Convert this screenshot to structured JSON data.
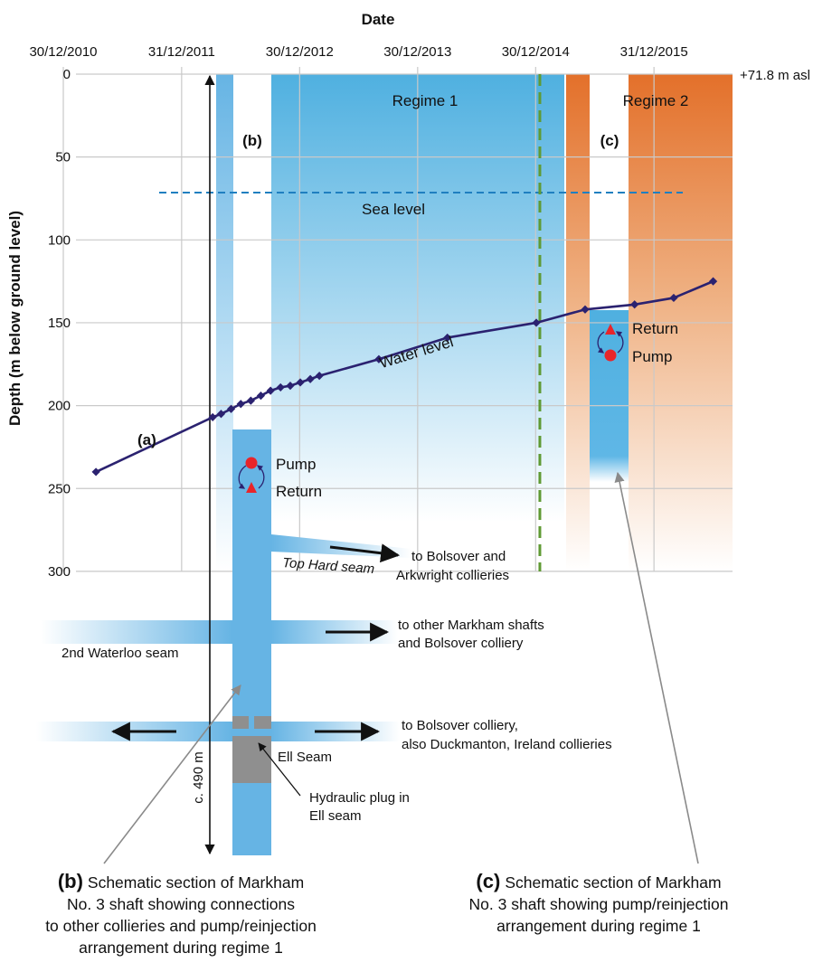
{
  "chart_data": {
    "type": "line",
    "xlabel": "Date",
    "ylabel": "Depth (m below ground level)",
    "x_ticks": [
      "30/12/2010",
      "31/12/2011",
      "30/12/2012",
      "30/12/2013",
      "30/12/2014",
      "31/12/2015"
    ],
    "y_ticks": [
      0,
      50,
      100,
      150,
      200,
      250,
      300
    ],
    "ylim": [
      0,
      300
    ],
    "y_reversed": true,
    "grid": true,
    "datum_label": "+71.8 m asl",
    "regime_boundary_date": "2015-01-12",
    "regime_labels": [
      "Regime 1",
      "Regime 2"
    ],
    "sea_level_label": "Sea level",
    "sea_level_depth": 71.8,
    "series": [
      {
        "name": "Water level",
        "color": "#2b2270",
        "points": [
          [
            "2011-04-10",
            240
          ],
          [
            "2012-04-05",
            207
          ],
          [
            "2012-05-01",
            205
          ],
          [
            "2012-06-01",
            202
          ],
          [
            "2012-07-01",
            199
          ],
          [
            "2012-08-01",
            197
          ],
          [
            "2012-09-01",
            194
          ],
          [
            "2012-10-01",
            191
          ],
          [
            "2012-11-01",
            189
          ],
          [
            "2012-12-01",
            188
          ],
          [
            "2013-01-01",
            186
          ],
          [
            "2013-02-01",
            184
          ],
          [
            "2013-03-01",
            182
          ],
          [
            "2013-09-01",
            172
          ],
          [
            "2014-04-01",
            159
          ],
          [
            "2015-01-01",
            150
          ],
          [
            "2015-06-01",
            142
          ],
          [
            "2015-11-01",
            139
          ],
          [
            "2016-03-01",
            135
          ],
          [
            "2016-07-01",
            125
          ]
        ]
      }
    ]
  },
  "labels": {
    "a": "(a)",
    "b": "(b)",
    "c": "(c)",
    "water_level": "Water level",
    "pump": "Pump",
    "return": "Return",
    "top_hard_seam": "Top Hard seam",
    "to_bolsover_arkwright_1": "to Bolsover and",
    "to_bolsover_arkwright_2": "Arkwright collieries",
    "second_waterloo_seam": "2nd Waterloo seam",
    "to_markham_1": "to other Markham shafts",
    "to_markham_2": "and Bolsover colliery",
    "to_bolsover_duck_1": "to Bolsover colliery,",
    "to_bolsover_duck_2": "also Duckmanton, Ireland collieries",
    "ell_seam": "Ell Seam",
    "plug_1": "Hydraulic plug in",
    "plug_2": "Ell seam",
    "depth_490": "c. 490 m"
  },
  "captions": {
    "b": {
      "tag": "(b)",
      "line1": "Schematic section of Markham",
      "line2": "No. 3 shaft showing connections",
      "line3": "to other collieries and pump/reinjection",
      "line4": "arrangement during regime 1"
    },
    "c": {
      "tag": "(c)",
      "line1": "Schematic section of Markham",
      "line2": "No. 3 shaft showing pump/reinjection",
      "line3": "arrangement during regime 1"
    }
  },
  "colors": {
    "regime1": "#4fb0e0",
    "regime2": "#e3702a",
    "shaft": "#66b4e4",
    "water_line": "#2b2270",
    "boundary": "#5f9a34",
    "sea_level": "#1f7fc0",
    "pump_dot": "#e8252a",
    "plug": "#8f8f8f"
  }
}
